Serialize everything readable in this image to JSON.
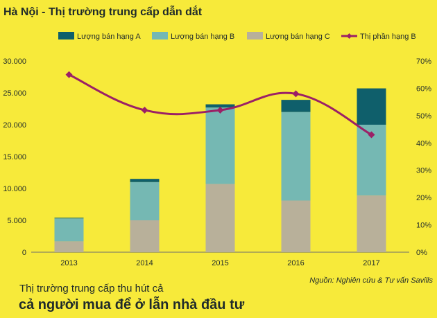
{
  "colors": {
    "background": "#f7ea3a",
    "series_a": "#0f5f6b",
    "series_b": "#75b8b3",
    "series_c": "#b8b09a",
    "line": "#9b2066",
    "axis": "#6d6d6d",
    "text": "#1f2a2a"
  },
  "chart_data": {
    "type": "bar",
    "stacked": true,
    "title": "Hà Nội - Thị trường trung cấp dẫn dắt",
    "categories": [
      "2013",
      "2014",
      "2015",
      "2016",
      "2017"
    ],
    "series": [
      {
        "name": "Lượng bán hạng A",
        "type": "bar",
        "values": [
          100,
          500,
          500,
          1900,
          5700
        ]
      },
      {
        "name": "Lượng bán hạng B",
        "type": "bar",
        "values": [
          3600,
          6000,
          12000,
          13900,
          11100
        ]
      },
      {
        "name": "Lượng bán hạng C",
        "type": "bar",
        "values": [
          1700,
          5000,
          10700,
          8100,
          8900
        ]
      },
      {
        "name": "Thị phần hạng B",
        "type": "line",
        "axis": "right",
        "values": [
          65,
          52,
          52,
          58,
          43
        ]
      }
    ],
    "left_axis": {
      "ylim": [
        0,
        30000
      ],
      "tick_values": [
        0,
        5000,
        10000,
        15000,
        20000,
        25000,
        30000
      ],
      "tick_labels": [
        "0",
        "5.000",
        "10.000",
        "15.000",
        "20.000",
        "25.000",
        "30.000"
      ]
    },
    "right_axis": {
      "ylim": [
        0,
        70
      ],
      "tick_values": [
        0,
        10,
        20,
        30,
        40,
        50,
        60,
        70
      ],
      "tick_labels": [
        "0%",
        "10%",
        "20%",
        "30%",
        "40%",
        "50%",
        "60%",
        "70%"
      ]
    },
    "legend_position": "top",
    "grid": false,
    "source": "Nguồn: Nghiên cứu & Tư vấn Savills",
    "caption": {
      "line1": "Thị trường trung cấp thu hút cả",
      "line2": "cả người mua để ở lẫn nhà đầu tư"
    }
  }
}
